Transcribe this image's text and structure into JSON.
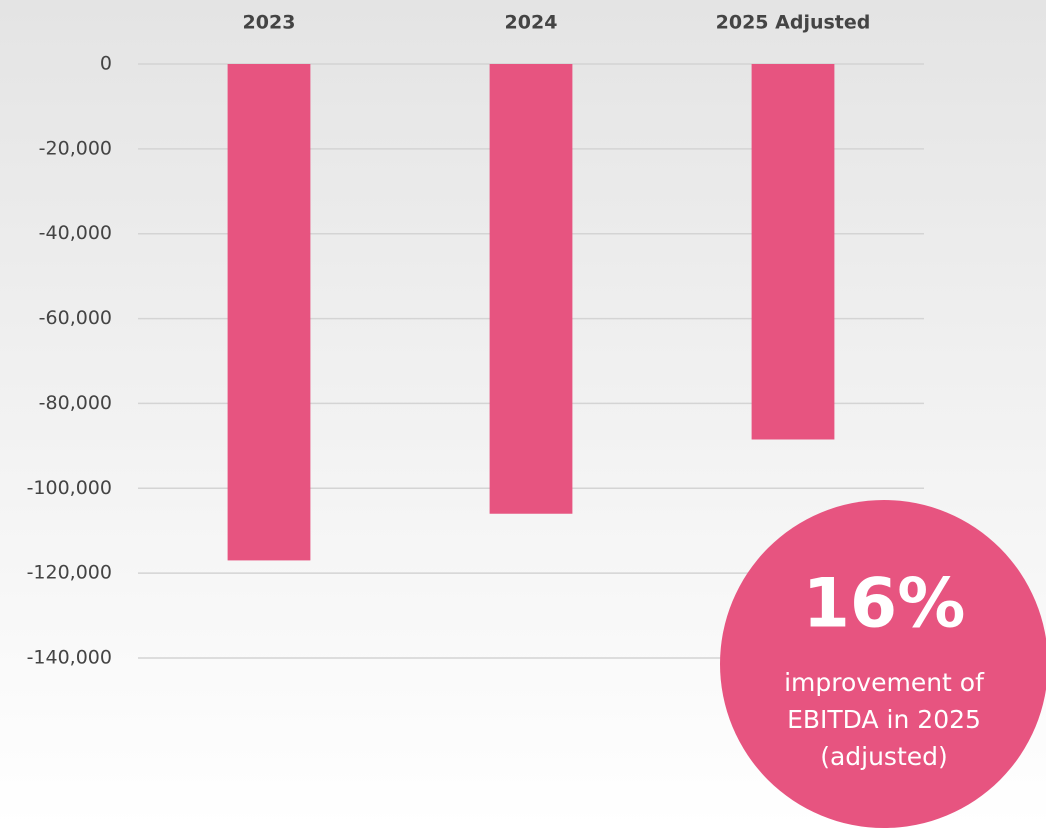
{
  "chart_data": {
    "type": "bar",
    "categories": [
      "2023",
      "2024",
      "2025 Adjusted"
    ],
    "values": [
      -117000,
      -106000,
      -88500
    ],
    "color": "#e75480",
    "ylim": [
      -140000,
      0
    ],
    "yticks": [
      0,
      {
        "value": -20000,
        "label": "-20,000"
      },
      {
        "value": -40000,
        "label": "-40,000"
      },
      {
        "value": -60000,
        "label": "-60,000"
      },
      {
        "value": -80000,
        "label": "-80,000"
      },
      {
        "value": -100000,
        "label": "-100,000"
      },
      {
        "value": -120000,
        "label": "-120,000"
      },
      {
        "value": -140000,
        "label": "-140,000"
      }
    ],
    "grid": true,
    "annotation": {
      "headline": "16%",
      "lines": [
        "improvement of",
        "EBITDA in 2025",
        "(adjusted)"
      ]
    }
  }
}
